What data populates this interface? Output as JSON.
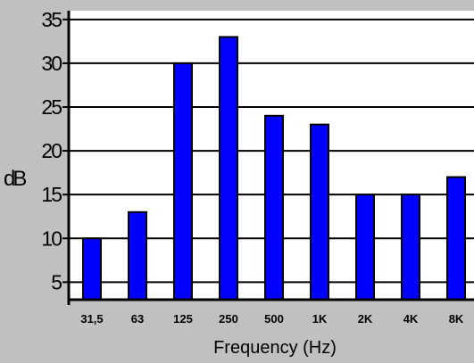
{
  "chart_data": {
    "type": "bar",
    "title": "",
    "xlabel": "Frequency (Hz)",
    "ylabel": "dB",
    "categories": [
      "31,5",
      "63",
      "125",
      "250",
      "500",
      "1K",
      "2K",
      "4K",
      "8K"
    ],
    "values": [
      10,
      13,
      30,
      33,
      24,
      23,
      15,
      15,
      17
    ],
    "ylim": [
      3,
      36
    ],
    "yticks": [
      5,
      10,
      15,
      20,
      25,
      30,
      35
    ],
    "grid": true,
    "legend": "none",
    "colors": {
      "background": "#c0c0c0",
      "plot_area": "#ffffff",
      "bar": "#0000ff",
      "bar_edge": "#000000",
      "grid": "#000000"
    }
  }
}
